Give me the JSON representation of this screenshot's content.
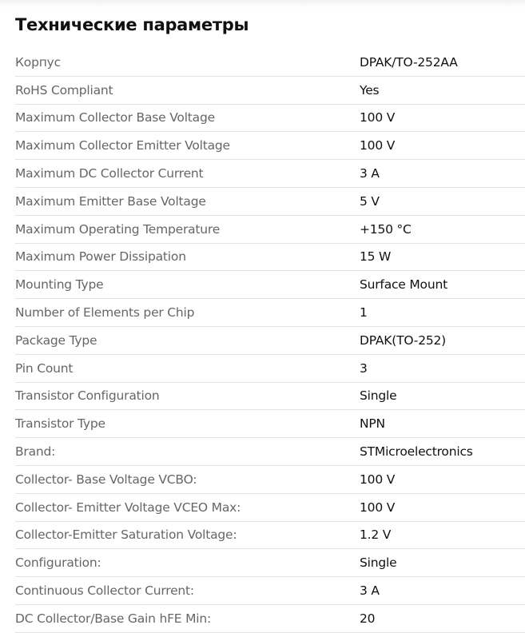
{
  "title": "Технические параметры",
  "rows": [
    {
      "label": "Корпус",
      "value": "DPAK/TO-252AA"
    },
    {
      "label": "RoHS Compliant",
      "value": "Yes"
    },
    {
      "label": "Maximum Collector Base Voltage",
      "value": "100 V"
    },
    {
      "label": "Maximum Collector Emitter Voltage",
      "value": "100 V"
    },
    {
      "label": "Maximum DC Collector Current",
      "value": "3 A"
    },
    {
      "label": "Maximum Emitter Base Voltage",
      "value": "5 V"
    },
    {
      "label": "Maximum Operating Temperature",
      "value": "+150 °C"
    },
    {
      "label": "Maximum Power Dissipation",
      "value": "15 W"
    },
    {
      "label": "Mounting Type",
      "value": "Surface Mount"
    },
    {
      "label": "Number of Elements per Chip",
      "value": "1"
    },
    {
      "label": "Package Type",
      "value": "DPAK(TO-252)"
    },
    {
      "label": "Pin Count",
      "value": "3"
    },
    {
      "label": "Transistor Configuration",
      "value": "Single"
    },
    {
      "label": "Transistor Type",
      "value": "NPN"
    },
    {
      "label": "Brand:",
      "value": "STMicroelectronics"
    },
    {
      "label": "Collector- Base Voltage VCBO:",
      "value": "100 V"
    },
    {
      "label": "Collector- Emitter Voltage VCEO Max:",
      "value": "100 V"
    },
    {
      "label": "Collector-Emitter Saturation Voltage:",
      "value": "1.2 V"
    },
    {
      "label": "Configuration:",
      "value": "Single"
    },
    {
      "label": "Continuous Collector Current:",
      "value": "3 A"
    },
    {
      "label": "DC Collector/Base Gain hFE Min:",
      "value": "20"
    }
  ]
}
